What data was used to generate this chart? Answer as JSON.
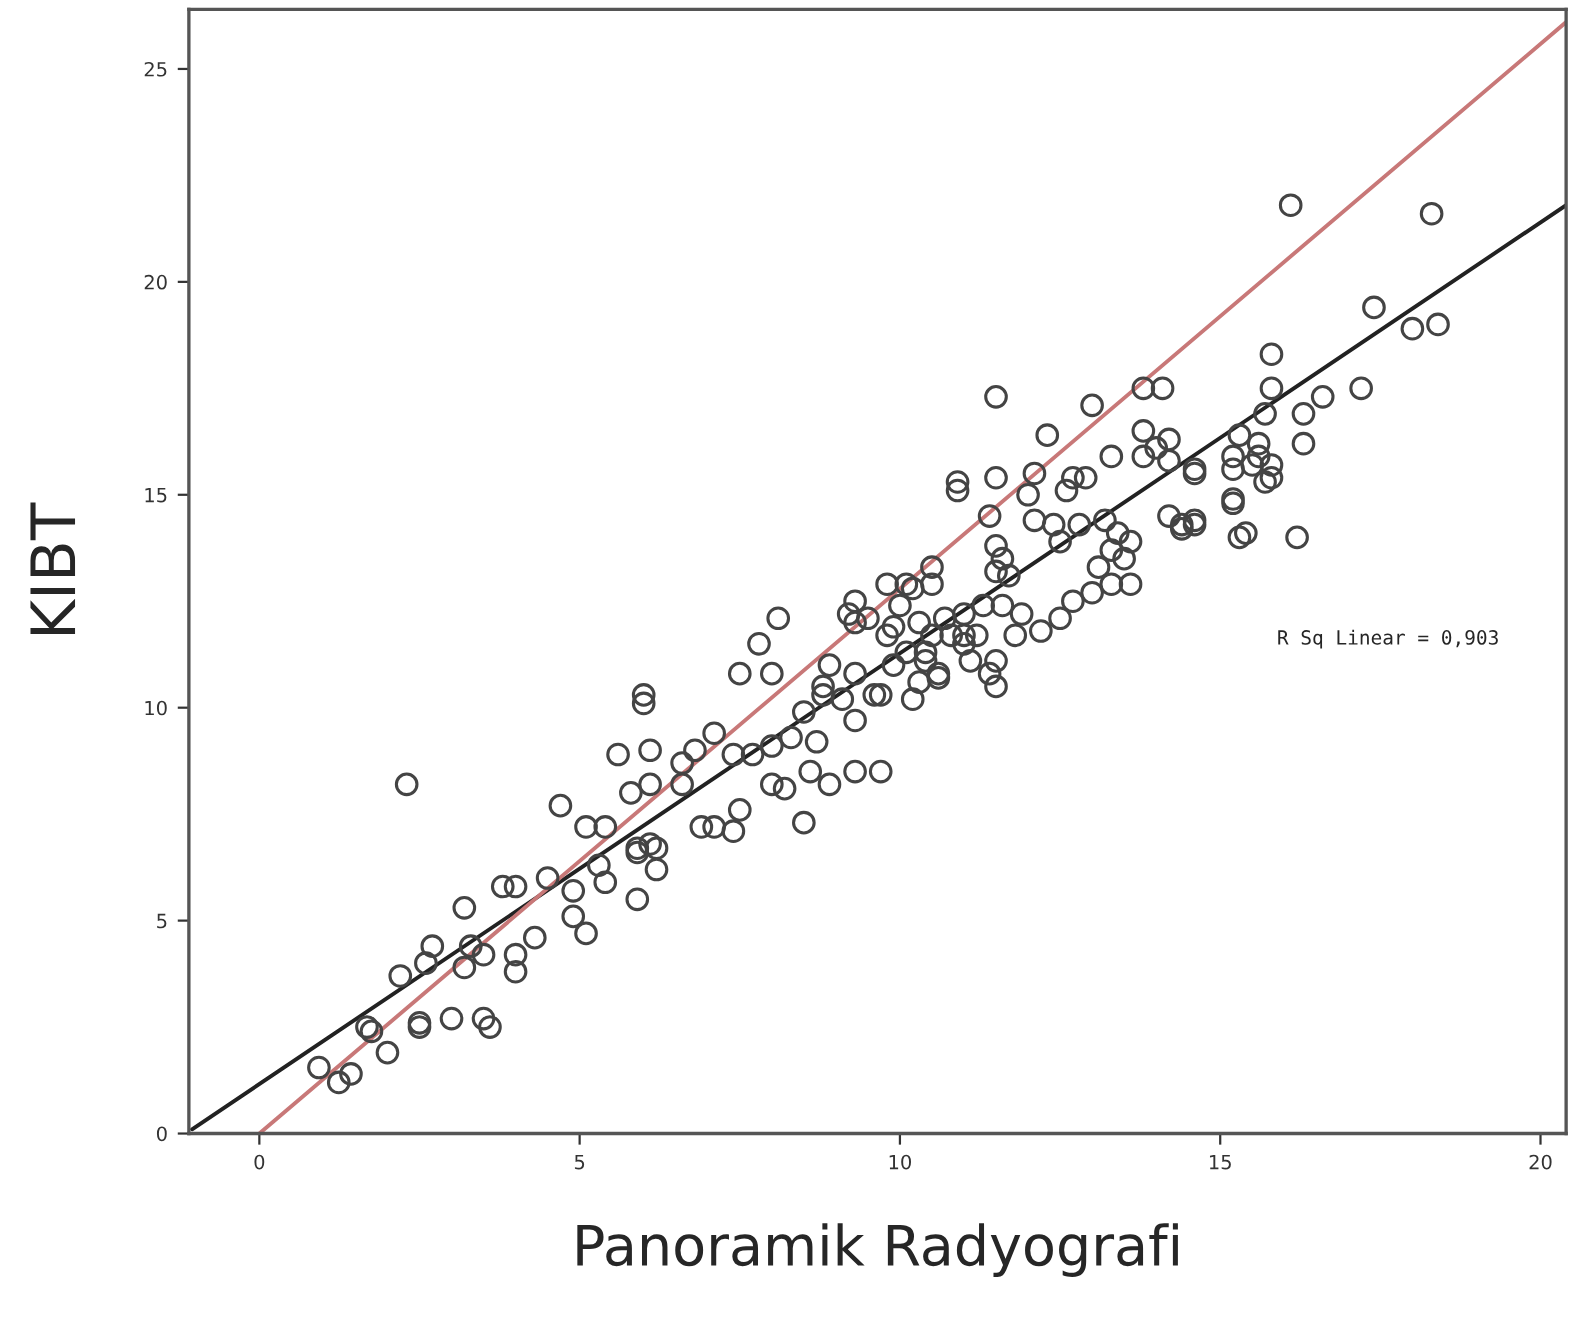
{
  "chart_data": {
    "type": "scatter",
    "xlabel": "Panoramik Radyografi",
    "ylabel": "KIBT",
    "annotations": [
      "R Sq Linear = 0,903"
    ],
    "xlim": [
      -1.1,
      20.4
    ],
    "ylim": [
      0,
      26.4
    ],
    "xticks": [
      0,
      5,
      10,
      15,
      20
    ],
    "yticks": [
      0,
      5,
      10,
      15,
      20,
      25
    ],
    "grid": false,
    "series": [
      {
        "color": "#444444",
        "marker": "circle",
        "x": [
          2.3,
          0.93,
          1.24,
          1.43,
          2.0,
          1.68,
          1.75,
          2.5,
          2.5,
          3.0,
          3.5,
          3.6,
          2.2,
          2.6,
          2.7,
          3.2,
          3.3,
          3.5,
          4.0,
          4.0,
          4.3,
          3.2,
          3.8,
          4.0,
          4.5,
          4.9,
          4.9,
          5.1,
          4.7,
          5.1,
          5.4,
          5.3,
          5.4,
          5.9,
          5.9,
          6.2,
          6.2,
          6.1,
          5.8,
          7.1,
          6.6,
          6.0,
          6.0,
          5.6,
          6.1,
          7.5,
          7.8,
          8.1,
          8.0,
          7.1,
          6.8,
          6.6,
          6.9,
          7.4,
          7.5,
          8.5,
          8.0,
          8.2,
          8.6,
          8.9,
          9.3,
          9.7,
          8.7,
          8.3,
          8.5,
          8.8,
          9.3,
          9.8,
          10.2,
          10.5,
          10.5,
          9.3,
          9.8,
          9.3,
          9.7,
          9.3,
          10.2,
          10.6,
          11.0,
          10.4,
          9.9,
          8.9,
          8.0,
          7.7,
          7.4,
          6.1,
          5.9,
          11.5,
          13.0,
          13.8,
          14.1,
          15.8,
          15.8,
          16.3,
          16.3,
          12.3,
          13.3,
          13.8,
          14.2,
          13.8,
          14.0,
          14.2,
          14.6,
          15.2,
          15.2,
          15.6,
          15.8,
          15.8,
          15.6,
          15.2,
          15.4,
          14.4,
          14.6,
          14.2,
          10.9,
          10.9,
          11.5,
          12.1,
          11.4,
          12.0,
          12.7,
          12.6,
          12.9,
          12.1,
          12.4,
          12.5,
          12.8,
          11.5,
          11.6,
          11.5,
          11.7,
          13.2,
          13.4,
          13.3,
          13.6,
          13.1,
          13.5,
          13.3,
          13.6,
          13.0,
          12.7,
          12.5,
          12.2,
          11.9,
          11.6,
          11.8,
          11.3,
          11.2,
          11.0,
          11.0,
          11.1,
          11.5,
          11.4,
          11.5,
          10.1,
          9.2,
          9.5,
          10.0,
          9.9,
          10.3,
          10.7,
          10.5,
          10.8,
          10.1,
          10.4,
          10.6,
          10.3,
          8.8,
          9.1,
          9.6,
          16.1,
          18.3,
          17.4,
          18.0,
          18.4,
          16.6,
          17.2,
          15.7,
          15.3,
          15.5,
          15.7,
          14.6,
          15.2,
          15.3,
          14.6,
          14.4,
          16.2
        ],
        "values": [
          8.2,
          1.55,
          1.2,
          1.4,
          1.9,
          2.5,
          2.4,
          2.6,
          2.5,
          2.7,
          2.7,
          2.5,
          3.7,
          4.0,
          4.4,
          3.9,
          4.4,
          4.2,
          4.2,
          3.8,
          4.6,
          5.3,
          5.8,
          5.8,
          6.0,
          5.7,
          5.1,
          4.7,
          7.7,
          7.2,
          7.2,
          6.3,
          5.9,
          5.5,
          6.7,
          6.7,
          6.2,
          8.2,
          8.0,
          7.2,
          8.2,
          10.3,
          10.1,
          8.9,
          9.0,
          10.8,
          11.5,
          12.1,
          10.8,
          9.4,
          9.0,
          8.7,
          7.2,
          7.1,
          7.6,
          7.3,
          8.2,
          8.1,
          8.5,
          8.2,
          8.5,
          8.5,
          9.2,
          9.3,
          9.9,
          10.3,
          12.5,
          12.9,
          12.8,
          13.3,
          12.9,
          12.0,
          11.7,
          10.8,
          10.3,
          9.7,
          10.2,
          10.7,
          11.7,
          11.3,
          11.0,
          11.0,
          9.1,
          8.9,
          8.9,
          6.8,
          6.6,
          17.3,
          17.1,
          17.5,
          17.5,
          18.3,
          17.5,
          16.9,
          16.2,
          16.4,
          15.9,
          16.5,
          16.3,
          15.9,
          16.1,
          15.8,
          15.5,
          15.9,
          15.6,
          15.9,
          15.7,
          15.4,
          16.2,
          14.9,
          14.1,
          14.3,
          14.4,
          14.5,
          15.3,
          15.1,
          15.4,
          15.5,
          14.5,
          15.0,
          15.4,
          15.1,
          15.4,
          14.4,
          14.3,
          13.9,
          14.3,
          13.8,
          13.5,
          13.2,
          13.1,
          14.4,
          14.1,
          13.7,
          13.9,
          13.3,
          13.5,
          12.9,
          12.9,
          12.7,
          12.5,
          12.1,
          11.8,
          12.2,
          12.4,
          11.7,
          12.4,
          11.7,
          12.2,
          11.5,
          11.1,
          11.1,
          10.8,
          10.5,
          12.9,
          12.2,
          12.1,
          12.4,
          11.9,
          12.0,
          12.1,
          11.7,
          11.7,
          11.3,
          11.1,
          10.8,
          10.6,
          10.5,
          10.2,
          10.3,
          21.8,
          21.6,
          19.4,
          18.9,
          19.0,
          17.3,
          17.5,
          16.9,
          16.4,
          15.7,
          15.3,
          15.6,
          14.8,
          14.0,
          14.3,
          14.2,
          14.0
        ]
      },
      {
        "type": "line",
        "marker": "none",
        "color": "#222222",
        "x": [
          -1.05,
          20.4
        ],
        "values": [
          0.1,
          21.8
        ]
      },
      {
        "type": "line",
        "marker": "none",
        "color": "#c87878",
        "x": [
          0,
          20.4
        ],
        "values": [
          0,
          26.1
        ]
      }
    ]
  }
}
